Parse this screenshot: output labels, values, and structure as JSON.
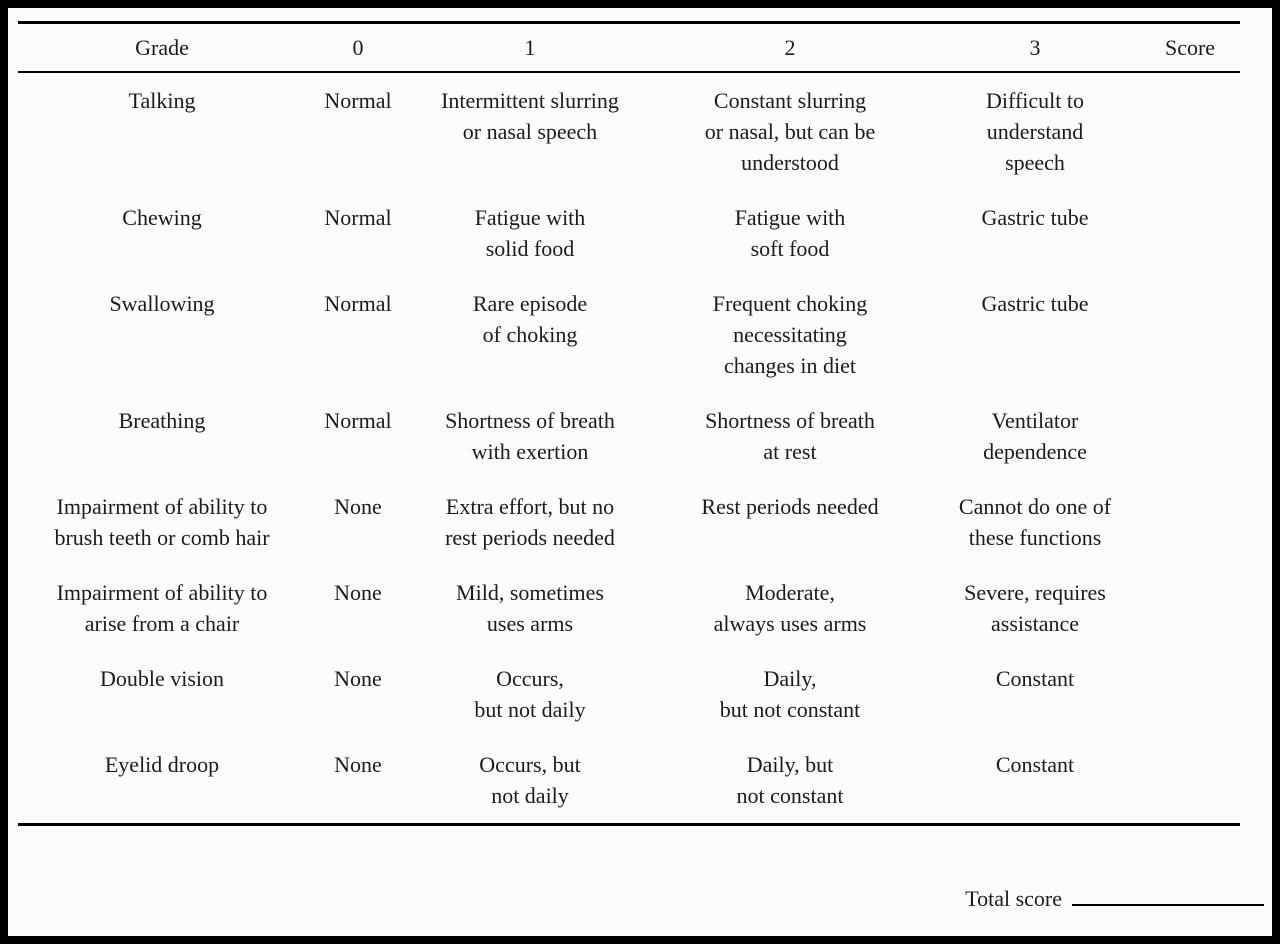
{
  "table": {
    "headers": [
      "Grade",
      "0",
      "1",
      "2",
      "3",
      "Score"
    ],
    "rows": [
      {
        "label": "Talking",
        "c0": "Normal",
        "c1": "Intermittent slurring\nor nasal speech",
        "c2": "Constant slurring\nor nasal, but can be\nunderstood",
        "c3": "Difficult to\nunderstand\nspeech",
        "score": ""
      },
      {
        "label": "Chewing",
        "c0": "Normal",
        "c1": "Fatigue with\nsolid food",
        "c2": "Fatigue with\nsoft food",
        "c3": "Gastric tube",
        "score": ""
      },
      {
        "label": "Swallowing",
        "c0": "Normal",
        "c1": "Rare episode\nof choking",
        "c2": "Frequent choking\nnecessitating\nchanges in diet",
        "c3": "Gastric tube",
        "score": ""
      },
      {
        "label": "Breathing",
        "c0": "Normal",
        "c1": "Shortness of breath\nwith exertion",
        "c2": "Shortness of breath\nat rest",
        "c3": "Ventilator\ndependence",
        "score": ""
      },
      {
        "label": "Impairment of ability to\nbrush teeth or comb hair",
        "c0": "None",
        "c1": "Extra effort, but no\nrest periods needed",
        "c2": "Rest periods needed",
        "c3": "Cannot do one of\nthese functions",
        "score": ""
      },
      {
        "label": "Impairment of ability to\narise from a chair",
        "c0": "None",
        "c1": "Mild, sometimes\nuses arms",
        "c2": "Moderate,\nalways uses arms",
        "c3": "Severe, requires\nassistance",
        "score": ""
      },
      {
        "label": "Double vision",
        "c0": "None",
        "c1": "Occurs,\nbut not daily",
        "c2": "Daily,\nbut not constant",
        "c3": "Constant",
        "score": ""
      },
      {
        "label": "Eyelid droop",
        "c0": "None",
        "c1": "Occurs, but\nnot daily",
        "c2": "Daily, but\nnot constant",
        "c3": "Constant",
        "score": ""
      }
    ]
  },
  "footer": {
    "total_label": "Total score"
  },
  "colors": {
    "border": "#000000",
    "background": "#fcfcfb",
    "text": "#1b1b1b"
  }
}
